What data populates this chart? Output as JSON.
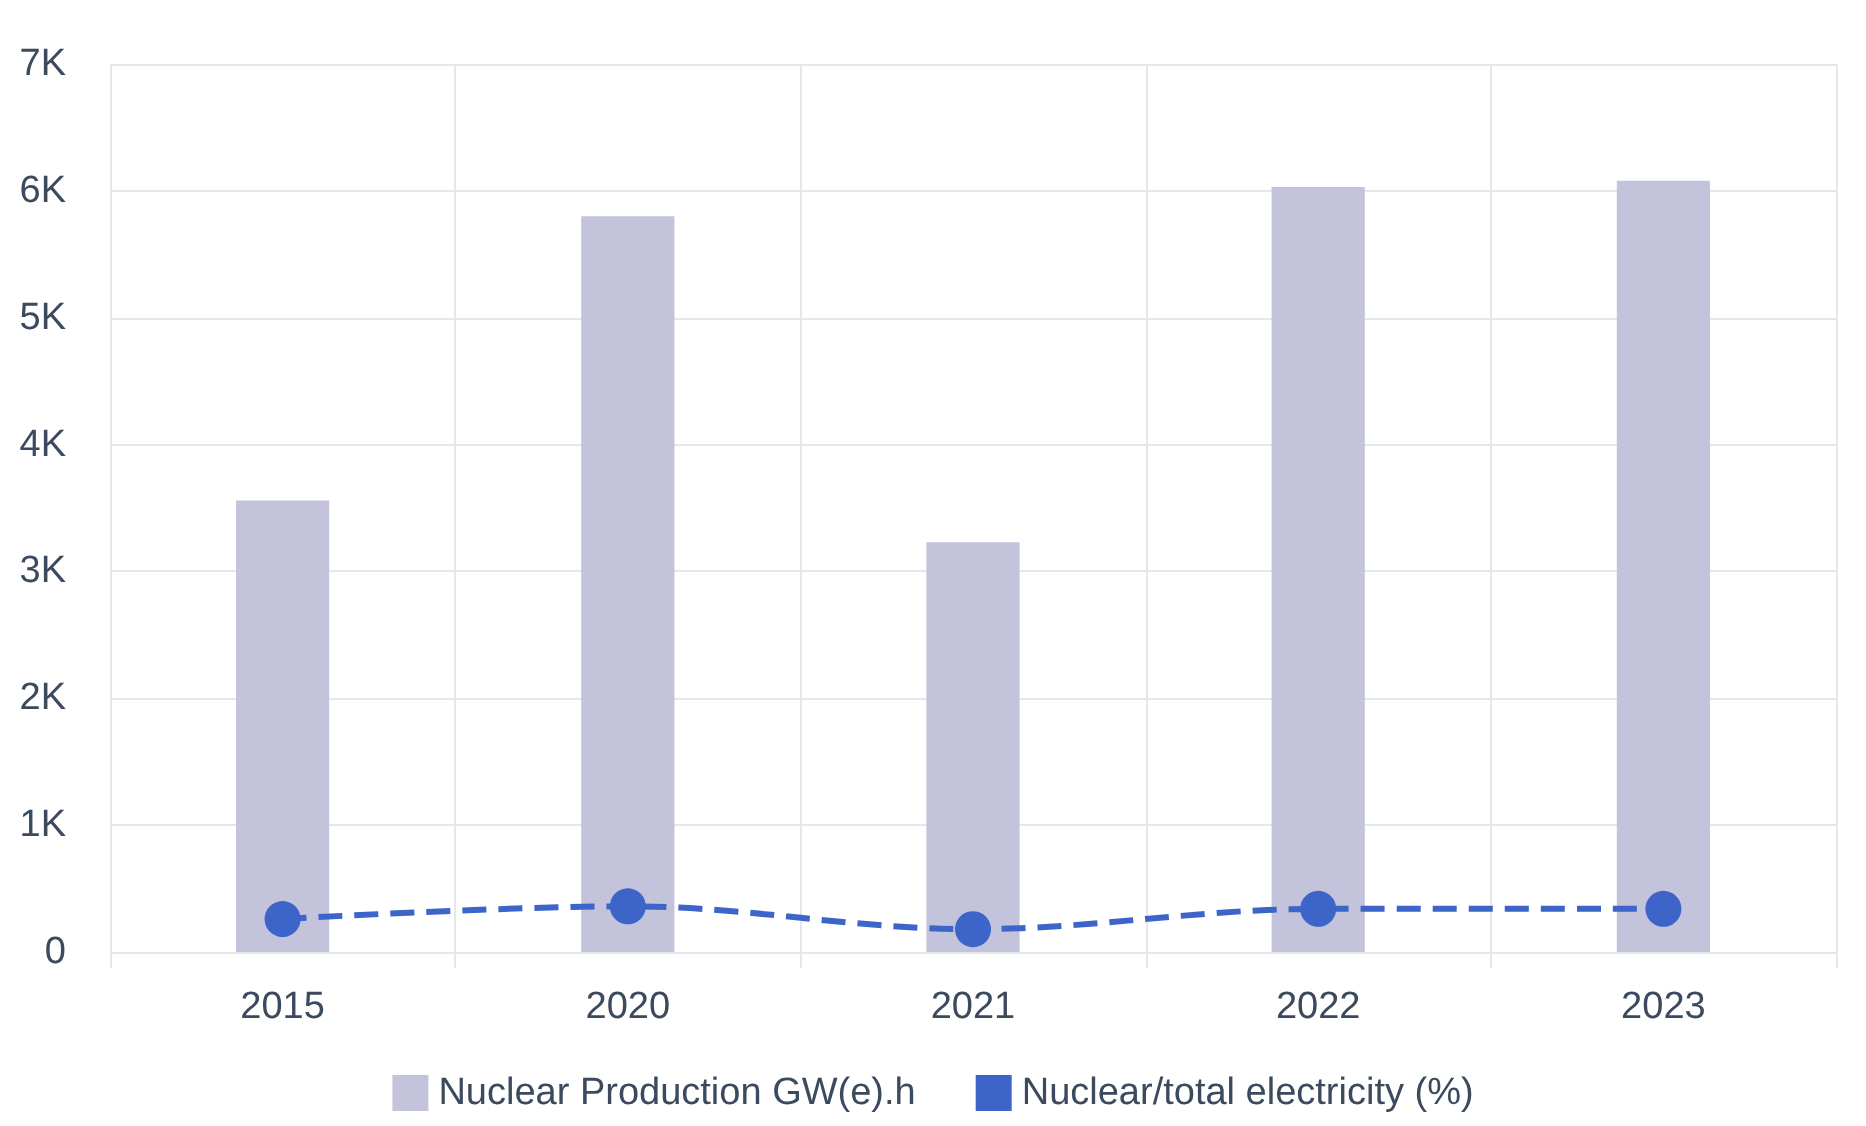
{
  "chart_data": {
    "type": "bar",
    "categories": [
      "2015",
      "2020",
      "2021",
      "2022",
      "2023"
    ],
    "series": [
      {
        "name": "Nuclear Production GW(e).h",
        "color": "#c3c3dc",
        "values": [
          3560,
          5800,
          3230,
          6030,
          6080
        ]
      },
      {
        "name": "Nuclear/total electricity (%)",
        "type": "line",
        "color": "#3d64c8",
        "values": [
          260,
          360,
          180,
          340,
          340
        ],
        "marker": "circle",
        "line_style": "dashed"
      }
    ],
    "ylim": [
      0,
      7000
    ],
    "yticks": [
      0,
      {
        "value": 1000,
        "label": "1K"
      },
      {
        "value": 2000,
        "label": "2K"
      },
      {
        "value": 3000,
        "label": "3K"
      },
      {
        "value": 4000,
        "label": "4K"
      },
      {
        "value": 5000,
        "label": "5K"
      },
      {
        "value": 6000,
        "label": "6K"
      },
      {
        "value": 7000,
        "label": "7K"
      }
    ],
    "grid": true,
    "legend": "bottom"
  }
}
